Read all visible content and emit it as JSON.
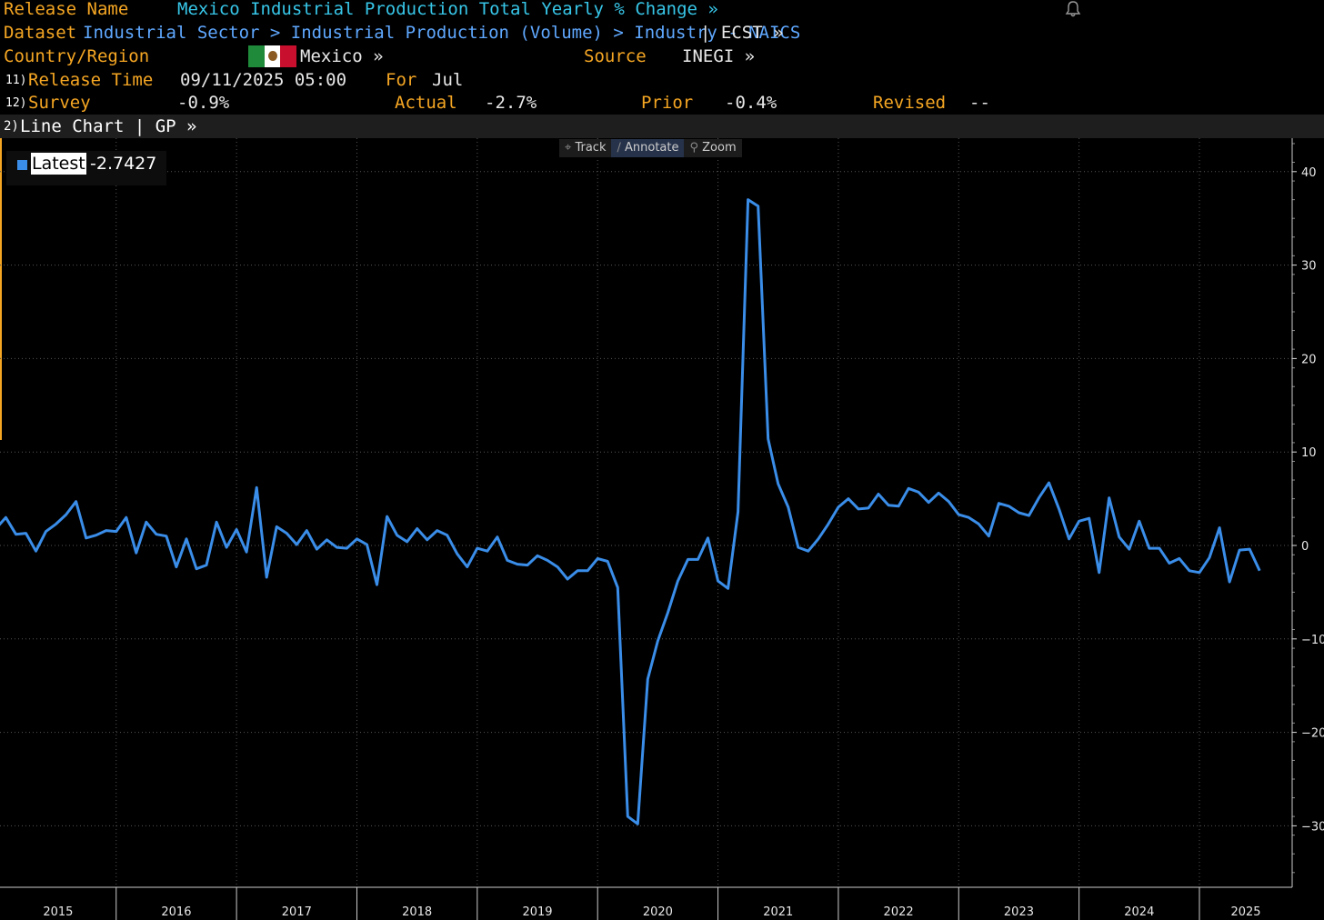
{
  "header": {
    "release_name_label": "Release Name",
    "release_name_value": "Mexico Industrial Production Total Yearly % Change »",
    "dataset_label": "Dataset",
    "dataset_path": "Industrial Sector > Industrial Production (Volume) > Industry - NAICS",
    "dataset_code": "| ECST »",
    "country_label": "Country/Region",
    "country_value": "Mexico »",
    "source_label": "Source",
    "source_value": "INEGI »",
    "release_time_num": "11)",
    "release_time_label": "Release Time",
    "release_time_value": "09/11/2025 05:00",
    "for_label": "For",
    "for_value": "Jul",
    "survey_num": "12)",
    "survey_label": "Survey",
    "survey_value": "-0.9%",
    "actual_label": "Actual",
    "actual_value": "-2.7%",
    "prior_label": "Prior",
    "prior_value": "-0.4%",
    "revised_label": "Revised",
    "revised_value": "--"
  },
  "chart_bar": {
    "num": "2)",
    "label": "Line Chart | GP »"
  },
  "toolbar": {
    "track": "Track",
    "annotate": "Annotate",
    "zoom": "Zoom"
  },
  "legend": {
    "label": "Latest",
    "value": "-2.7427"
  },
  "colors": {
    "line": "#3a8de8",
    "orange": "#f5a623",
    "cyan": "#37c6e8",
    "blue_link": "#5fa8ff"
  },
  "icons": {
    "bell": "bell-icon",
    "track": "crosshair-icon",
    "annotate": "pencil-icon",
    "zoom": "magnifier-icon"
  },
  "chart_data": {
    "type": "line",
    "ylim": [
      -36,
      44
    ],
    "y_ticks": [
      40,
      30,
      20,
      10,
      0,
      -10,
      -20,
      -30
    ],
    "x_years": [
      "2015",
      "2016",
      "2017",
      "2018",
      "2019",
      "2020",
      "2021",
      "2022",
      "2023",
      "2024",
      "2025"
    ],
    "grid": true,
    "series": [
      {
        "name": "Latest",
        "start": "2015-01",
        "values": [
          1.8,
          3.0,
          1.2,
          1.3,
          -0.6,
          1.5,
          2.3,
          3.3,
          4.7,
          0.8,
          1.1,
          1.6,
          1.5,
          3.0,
          -0.8,
          2.5,
          1.2,
          1.0,
          -2.3,
          0.7,
          -2.5,
          -2.1,
          2.5,
          -0.2,
          1.7,
          -0.7,
          6.2,
          -3.4,
          2.0,
          1.3,
          0.1,
          1.6,
          -0.4,
          0.6,
          -0.2,
          -0.3,
          0.7,
          0.1,
          -4.2,
          3.1,
          1.1,
          0.4,
          1.8,
          0.6,
          1.6,
          1.1,
          -0.9,
          -2.3,
          -0.3,
          -0.6,
          0.9,
          -1.6,
          -2.0,
          -2.1,
          -1.1,
          -1.6,
          -2.3,
          -3.6,
          -2.7,
          -2.7,
          -1.4,
          -1.7,
          -4.5,
          -29.0,
          -29.8,
          -14.3,
          -10.2,
          -7.2,
          -3.8,
          -1.5,
          -1.5,
          0.8,
          -3.8,
          -4.6,
          3.6,
          37.0,
          36.3,
          11.4,
          6.6,
          4.1,
          -0.2,
          -0.6,
          0.7,
          2.3,
          4.1,
          5.0,
          3.9,
          4.0,
          5.5,
          4.3,
          4.2,
          6.1,
          5.7,
          4.6,
          5.6,
          4.7,
          3.3,
          3.0,
          2.3,
          1.0,
          4.5,
          4.2,
          3.5,
          3.2,
          5.1,
          6.7,
          3.9,
          0.7,
          2.6,
          2.9,
          -2.9,
          5.1,
          0.9,
          -0.4,
          2.6,
          -0.3,
          -0.3,
          -1.9,
          -1.4,
          -2.7,
          -2.9,
          -1.3,
          1.9,
          -3.9,
          -0.5,
          -0.4,
          -2.7
        ]
      }
    ]
  }
}
